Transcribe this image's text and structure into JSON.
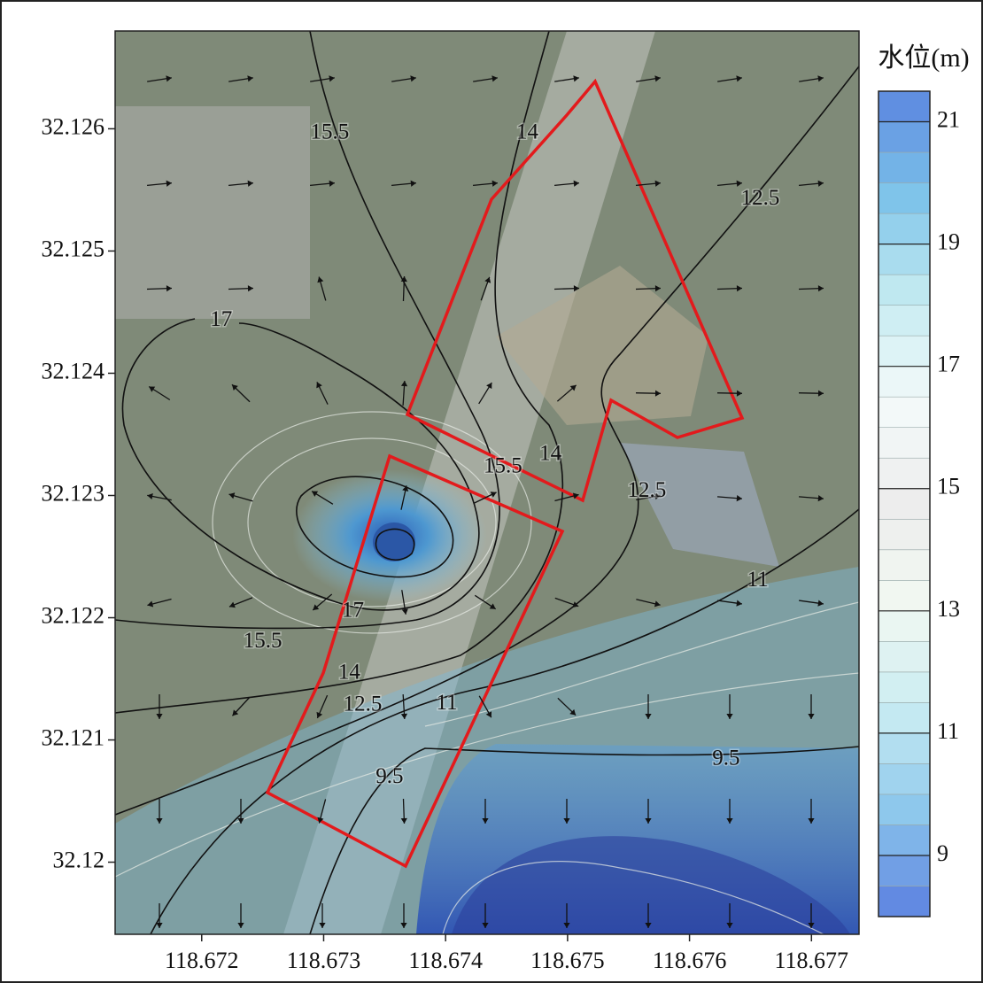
{
  "chart_data": {
    "type": "contour",
    "xlim": [
      118.67129,
      118.67739
    ],
    "ylim": [
      32.11941,
      32.1268
    ],
    "xticks": [
      118.672,
      118.673,
      118.674,
      118.675,
      118.676,
      118.677
    ],
    "yticks": [
      32.126,
      32.125,
      32.124,
      32.123,
      32.122,
      32.121,
      32.12
    ],
    "colorbar": {
      "label": "水位(m)",
      "clim": [
        8,
        21.5
      ],
      "levels": [
        8,
        8.5,
        9,
        9.5,
        10,
        10.5,
        11,
        11.5,
        12,
        12.5,
        13,
        13.5,
        14,
        14.5,
        15,
        15.5,
        16,
        16.5,
        17,
        17.5,
        18,
        18.5,
        19,
        19.5,
        20,
        20.5,
        21,
        21.5
      ],
      "ticks": [
        21,
        19,
        17,
        15,
        13,
        11,
        9
      ],
      "colormap": [
        "#5b7fe0",
        "#8cc7ec",
        "#c9ecf2",
        "#f2f8f2",
        "#ededed",
        "#f4fafa",
        "#c4ebf1",
        "#7cc3ea",
        "#5b86e0"
      ]
    },
    "contour_labels": [
      {
        "level": 15.5,
        "x": 118.67305,
        "y": 32.12596
      },
      {
        "level": 14,
        "x": 118.67467,
        "y": 32.12596
      },
      {
        "level": 12.5,
        "x": 118.67658,
        "y": 32.12542
      },
      {
        "level": 17,
        "x": 118.67216,
        "y": 32.12443
      },
      {
        "level": 15.5,
        "x": 118.67447,
        "y": 32.12323
      },
      {
        "level": 14,
        "x": 118.67486,
        "y": 32.12333
      },
      {
        "level": 12.5,
        "x": 118.67565,
        "y": 32.12303
      },
      {
        "level": 11,
        "x": 118.67656,
        "y": 32.1223
      },
      {
        "level": 17,
        "x": 118.67324,
        "y": 32.12205
      },
      {
        "level": 15.5,
        "x": 118.6725,
        "y": 32.1218
      },
      {
        "level": 14,
        "x": 118.67321,
        "y": 32.12154
      },
      {
        "level": 12.5,
        "x": 118.67332,
        "y": 32.12128
      },
      {
        "level": 11,
        "x": 118.67401,
        "y": 32.12129
      },
      {
        "level": 9.5,
        "x": 118.6763,
        "y": 32.12084
      },
      {
        "level": 9.5,
        "x": 118.67354,
        "y": 32.12069
      }
    ]
  }
}
